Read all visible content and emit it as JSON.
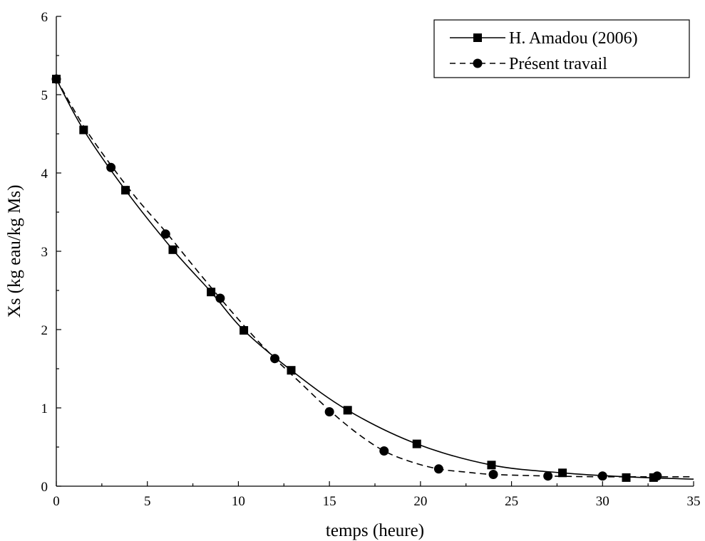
{
  "chart_data": {
    "type": "line",
    "xlabel": "temps (heure)",
    "ylabel": "Xs (kg eau/kg Ms)",
    "xlim": [
      0,
      35
    ],
    "ylim": [
      0,
      6
    ],
    "xticks": [
      0,
      5,
      10,
      15,
      20,
      25,
      30,
      35
    ],
    "yticks": [
      0,
      1,
      2,
      3,
      4,
      5,
      6
    ],
    "xtick_labels": [
      "0",
      "5",
      "10",
      "15",
      "20",
      "25",
      "30",
      "35"
    ],
    "ytick_labels": [
      "0",
      "1",
      "2",
      "3",
      "4",
      "5",
      "6"
    ],
    "grid": false,
    "legend_position": "top-right",
    "series": [
      {
        "name": "H. Amadou (2006)",
        "line_style": "solid",
        "marker": "square",
        "color": "#000000",
        "markers": [
          {
            "x": 0,
            "y": 5.2
          },
          {
            "x": 1.5,
            "y": 4.55
          },
          {
            "x": 3.8,
            "y": 3.78
          },
          {
            "x": 6.4,
            "y": 3.02
          },
          {
            "x": 8.5,
            "y": 2.48
          },
          {
            "x": 10.3,
            "y": 1.99
          },
          {
            "x": 12.9,
            "y": 1.48
          },
          {
            "x": 16,
            "y": 0.97
          },
          {
            "x": 19.8,
            "y": 0.54
          },
          {
            "x": 23.9,
            "y": 0.27
          },
          {
            "x": 27.8,
            "y": 0.17
          },
          {
            "x": 31.3,
            "y": 0.11
          },
          {
            "x": 32.8,
            "y": 0.11
          }
        ],
        "curve": [
          {
            "x": 0,
            "y": 5.2
          },
          {
            "x": 1.5,
            "y": 4.55
          },
          {
            "x": 3.8,
            "y": 3.78
          },
          {
            "x": 6.4,
            "y": 3.02
          },
          {
            "x": 8.5,
            "y": 2.48
          },
          {
            "x": 10.3,
            "y": 1.99
          },
          {
            "x": 12.9,
            "y": 1.48
          },
          {
            "x": 16,
            "y": 0.97
          },
          {
            "x": 19.8,
            "y": 0.54
          },
          {
            "x": 23.9,
            "y": 0.27
          },
          {
            "x": 27.8,
            "y": 0.17
          },
          {
            "x": 31.3,
            "y": 0.12
          },
          {
            "x": 35,
            "y": 0.09
          }
        ]
      },
      {
        "name": "Présent travail",
        "line_style": "dashed",
        "marker": "circle",
        "color": "#000000",
        "markers": [
          {
            "x": 0,
            "y": 5.2
          },
          {
            "x": 3,
            "y": 4.07
          },
          {
            "x": 6,
            "y": 3.22
          },
          {
            "x": 9,
            "y": 2.4
          },
          {
            "x": 12,
            "y": 1.63
          },
          {
            "x": 15,
            "y": 0.95
          },
          {
            "x": 18,
            "y": 0.45
          },
          {
            "x": 21,
            "y": 0.22
          },
          {
            "x": 24,
            "y": 0.15
          },
          {
            "x": 27,
            "y": 0.13
          },
          {
            "x": 30,
            "y": 0.13
          },
          {
            "x": 33,
            "y": 0.13
          }
        ],
        "curve": [
          {
            "x": 0,
            "y": 5.2
          },
          {
            "x": 1.5,
            "y": 4.6
          },
          {
            "x": 3,
            "y": 4.1
          },
          {
            "x": 4.5,
            "y": 3.65
          },
          {
            "x": 6,
            "y": 3.25
          },
          {
            "x": 7.5,
            "y": 2.82
          },
          {
            "x": 9,
            "y": 2.4
          },
          {
            "x": 10.5,
            "y": 2.0
          },
          {
            "x": 12,
            "y": 1.63
          },
          {
            "x": 13.5,
            "y": 1.3
          },
          {
            "x": 15,
            "y": 0.97
          },
          {
            "x": 16.5,
            "y": 0.68
          },
          {
            "x": 18,
            "y": 0.45
          },
          {
            "x": 19.5,
            "y": 0.31
          },
          {
            "x": 21,
            "y": 0.22
          },
          {
            "x": 22.5,
            "y": 0.18
          },
          {
            "x": 24,
            "y": 0.15
          },
          {
            "x": 27,
            "y": 0.13
          },
          {
            "x": 30,
            "y": 0.12
          },
          {
            "x": 33,
            "y": 0.12
          },
          {
            "x": 35,
            "y": 0.12
          }
        ]
      }
    ]
  }
}
